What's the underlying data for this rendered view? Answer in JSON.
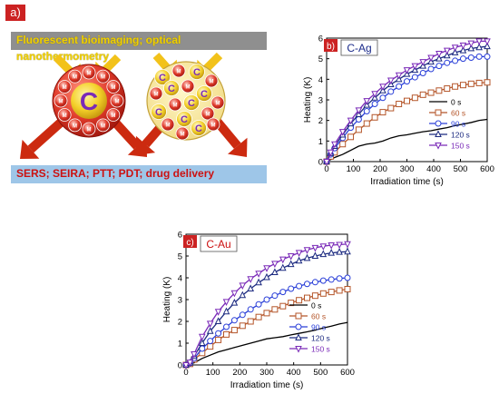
{
  "panel_a": {
    "label": "a)",
    "top_banner": "Fluorescent bioimaging; optical nanothermometry",
    "bottom_banner": "SERS; SEIRA;  PTT; PDT; drug delivery",
    "core_letter": "C",
    "shell_letter": "M",
    "colors": {
      "arrow_in": "#f2c21a",
      "arrow_out": "#cc2a10",
      "shell": "#e03a2a",
      "core": "#f4d12a"
    }
  },
  "chart_data": [
    {
      "type": "line",
      "panel_label": "b)",
      "title": "C-Ag",
      "xlabel": "Irradiation time (s)",
      "ylabel": "Heating (K)",
      "xlim": [
        0,
        600
      ],
      "ylim": [
        0,
        6
      ],
      "xticks": [
        0,
        100,
        200,
        300,
        400,
        500,
        600
      ],
      "yticks": [
        0,
        1,
        2,
        3,
        4,
        5,
        6
      ],
      "legend_position": "bottom-right",
      "series": [
        {
          "name": "0 s",
          "color": "#000000",
          "marker": "none",
          "x": [
            0,
            30,
            60,
            90,
            120,
            150,
            180,
            210,
            240,
            270,
            300,
            330,
            360,
            390,
            420,
            450,
            480,
            510,
            540,
            570,
            600
          ],
          "y": [
            0,
            0.2,
            0.35,
            0.55,
            0.75,
            0.85,
            0.9,
            1.0,
            1.15,
            1.25,
            1.3,
            1.38,
            1.45,
            1.5,
            1.58,
            1.65,
            1.75,
            1.82,
            1.9,
            2.0,
            2.05
          ]
        },
        {
          "name": "60 s",
          "color": "#b5562a",
          "marker": "square",
          "x": [
            0,
            15,
            30,
            60,
            90,
            120,
            150,
            180,
            210,
            240,
            270,
            300,
            330,
            360,
            390,
            420,
            450,
            480,
            510,
            540,
            570,
            600
          ],
          "y": [
            0,
            0.25,
            0.45,
            0.85,
            1.2,
            1.55,
            1.85,
            2.15,
            2.4,
            2.6,
            2.8,
            2.95,
            3.1,
            3.25,
            3.35,
            3.45,
            3.55,
            3.65,
            3.72,
            3.78,
            3.82,
            3.85
          ]
        },
        {
          "name": "90 s",
          "color": "#2a3fd8",
          "marker": "circle",
          "x": [
            0,
            15,
            30,
            60,
            90,
            120,
            150,
            180,
            210,
            240,
            270,
            300,
            330,
            360,
            390,
            420,
            450,
            480,
            510,
            540,
            570,
            600
          ],
          "y": [
            0,
            0.35,
            0.65,
            1.15,
            1.65,
            2.05,
            2.45,
            2.8,
            3.1,
            3.4,
            3.65,
            3.9,
            4.1,
            4.3,
            4.5,
            4.65,
            4.8,
            4.9,
            5.0,
            5.05,
            5.1,
            5.1
          ]
        },
        {
          "name": "120 s",
          "color": "#1c2a80",
          "marker": "triangle-up",
          "x": [
            0,
            15,
            30,
            60,
            90,
            120,
            150,
            180,
            210,
            240,
            270,
            300,
            330,
            360,
            390,
            420,
            450,
            480,
            510,
            540,
            570,
            600
          ],
          "y": [
            0,
            0.4,
            0.75,
            1.3,
            1.85,
            2.3,
            2.75,
            3.1,
            3.45,
            3.75,
            4.0,
            4.25,
            4.45,
            4.65,
            4.85,
            5.0,
            5.15,
            5.3,
            5.4,
            5.5,
            5.55,
            5.6
          ]
        },
        {
          "name": "150 s",
          "color": "#7a2ab8",
          "marker": "triangle-down",
          "x": [
            0,
            15,
            30,
            60,
            90,
            120,
            150,
            180,
            210,
            240,
            270,
            300,
            330,
            360,
            390,
            420,
            450,
            480,
            510,
            540,
            570,
            600
          ],
          "y": [
            0,
            0.45,
            0.85,
            1.45,
            2.0,
            2.5,
            2.95,
            3.3,
            3.65,
            3.95,
            4.2,
            4.45,
            4.65,
            4.85,
            5.05,
            5.25,
            5.4,
            5.55,
            5.65,
            5.75,
            5.85,
            5.85
          ]
        }
      ]
    },
    {
      "type": "line",
      "panel_label": "c)",
      "title": "C-Au",
      "xlabel": "Irradiation time (s)",
      "ylabel": "Heating (K)",
      "xlim": [
        0,
        600
      ],
      "ylim": [
        0,
        6
      ],
      "xticks": [
        0,
        100,
        200,
        300,
        400,
        500,
        600
      ],
      "yticks": [
        0,
        1,
        2,
        3,
        4,
        5,
        6
      ],
      "legend_position": "bottom-right",
      "series": [
        {
          "name": "0 s",
          "color": "#000000",
          "marker": "none",
          "x": [
            0,
            30,
            60,
            90,
            120,
            150,
            180,
            210,
            240,
            270,
            300,
            330,
            360,
            390,
            420,
            450,
            480,
            510,
            540,
            570,
            600
          ],
          "y": [
            0,
            0.1,
            0.3,
            0.45,
            0.6,
            0.7,
            0.8,
            0.9,
            1.0,
            1.1,
            1.2,
            1.25,
            1.3,
            1.38,
            1.45,
            1.52,
            1.6,
            1.7,
            1.78,
            1.88,
            1.95
          ]
        },
        {
          "name": "60 s",
          "color": "#b5562a",
          "marker": "square",
          "x": [
            0,
            15,
            30,
            60,
            90,
            120,
            150,
            180,
            210,
            240,
            270,
            300,
            330,
            360,
            390,
            420,
            450,
            480,
            510,
            540,
            570,
            600
          ],
          "y": [
            0,
            0.05,
            0.25,
            0.55,
            0.85,
            1.15,
            1.4,
            1.6,
            1.8,
            2.0,
            2.2,
            2.38,
            2.55,
            2.7,
            2.85,
            2.97,
            3.08,
            3.18,
            3.28,
            3.35,
            3.42,
            3.48
          ]
        },
        {
          "name": "90 s",
          "color": "#2a3fd8",
          "marker": "circle",
          "x": [
            0,
            15,
            30,
            60,
            90,
            120,
            150,
            180,
            210,
            240,
            270,
            300,
            330,
            360,
            390,
            420,
            450,
            480,
            510,
            540,
            570,
            600
          ],
          "y": [
            0,
            0.08,
            0.3,
            0.75,
            1.1,
            1.45,
            1.75,
            2.05,
            2.3,
            2.55,
            2.78,
            3.0,
            3.18,
            3.35,
            3.5,
            3.62,
            3.72,
            3.8,
            3.87,
            3.92,
            3.97,
            4.0
          ]
        },
        {
          "name": "120 s",
          "color": "#1c2a80",
          "marker": "triangle-up",
          "x": [
            0,
            15,
            30,
            60,
            90,
            120,
            150,
            180,
            210,
            240,
            270,
            300,
            330,
            360,
            390,
            420,
            450,
            480,
            510,
            540,
            570,
            600
          ],
          "y": [
            0,
            0.1,
            0.4,
            1.0,
            1.55,
            2.0,
            2.45,
            2.85,
            3.2,
            3.5,
            3.78,
            4.02,
            4.25,
            4.45,
            4.62,
            4.78,
            4.9,
            5.0,
            5.08,
            5.14,
            5.18,
            5.2
          ]
        },
        {
          "name": "150 s",
          "color": "#7a2ab8",
          "marker": "triangle-down",
          "x": [
            0,
            15,
            30,
            60,
            90,
            120,
            150,
            180,
            210,
            240,
            270,
            300,
            330,
            360,
            390,
            420,
            450,
            480,
            510,
            540,
            570,
            600
          ],
          "y": [
            0,
            0.12,
            0.5,
            1.3,
            1.9,
            2.45,
            2.9,
            3.3,
            3.65,
            3.95,
            4.2,
            4.45,
            4.65,
            4.85,
            5.0,
            5.15,
            5.28,
            5.38,
            5.45,
            5.5,
            5.52,
            5.55
          ]
        }
      ]
    }
  ]
}
